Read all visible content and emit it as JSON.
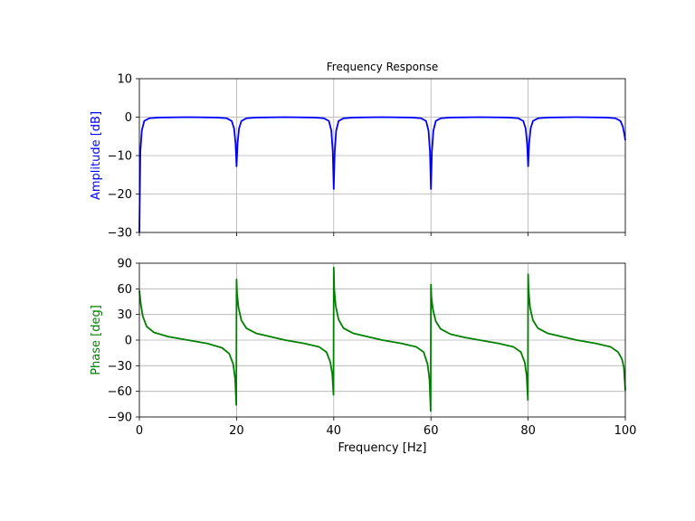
{
  "chart_data": [
    {
      "type": "line",
      "title": "Frequency Response",
      "xlabel": "",
      "ylabel": "Amplitude [dB]",
      "ylabel_color": "#0000ff",
      "xlim": [
        0,
        100
      ],
      "ylim": [
        -30,
        10
      ],
      "xticks": [
        0,
        20,
        40,
        60,
        80,
        100
      ],
      "yticks": [
        -30,
        -20,
        -10,
        0,
        10
      ],
      "xtick_labels": [
        "",
        "",
        "",
        "",
        "",
        ""
      ],
      "ytick_labels": [
        "−30",
        "−20",
        "−10",
        "0",
        "10"
      ],
      "grid": true,
      "series": [
        {
          "color": "#0000ff",
          "x": [
            0,
            0.2,
            0.5,
            1,
            2,
            4,
            10,
            16,
            18,
            19,
            19.5,
            19.8,
            20,
            20.2,
            20.5,
            21,
            22,
            24,
            30,
            36,
            38,
            39,
            39.5,
            39.8,
            40,
            40.2,
            40.5,
            41,
            42,
            44,
            50,
            56,
            58,
            59,
            59.5,
            59.8,
            60,
            60.2,
            60.5,
            61,
            62,
            64,
            70,
            76,
            78,
            79,
            79.5,
            79.8,
            80,
            80.2,
            80.5,
            81,
            82,
            84,
            90,
            96,
            98,
            99,
            99.5,
            99.8,
            100
          ],
          "y": [
            -30,
            -9,
            -3.5,
            -1,
            -0.3,
            -0.1,
            0,
            -0.1,
            -0.3,
            -1,
            -3,
            -7,
            -12.8,
            -7,
            -3,
            -1,
            -0.3,
            -0.1,
            0,
            -0.1,
            -0.3,
            -1,
            -3.5,
            -9,
            -18.7,
            -9,
            -3.5,
            -1,
            -0.3,
            -0.1,
            0,
            -0.1,
            -0.3,
            -1,
            -3.5,
            -9,
            -18.7,
            -9,
            -3.5,
            -1,
            -0.3,
            -0.1,
            0,
            -0.1,
            -0.3,
            -1,
            -3,
            -7,
            -12.8,
            -7,
            -3,
            -1,
            -0.3,
            -0.1,
            0,
            -0.1,
            -0.3,
            -1,
            -2.5,
            -4.5,
            -6
          ]
        }
      ]
    },
    {
      "type": "line",
      "title": "",
      "xlabel": "Frequency [Hz]",
      "ylabel": "Phase [deg]",
      "ylabel_color": "#008000",
      "xlim": [
        0,
        100
      ],
      "ylim": [
        -90,
        90
      ],
      "xticks": [
        0,
        20,
        40,
        60,
        80,
        100
      ],
      "yticks": [
        -90,
        -60,
        -30,
        0,
        30,
        60,
        90
      ],
      "xtick_labels": [
        "0",
        "20",
        "40",
        "60",
        "80",
        "100"
      ],
      "ytick_labels": [
        "−90",
        "−60",
        "−30",
        "0",
        "30",
        "60",
        "90"
      ],
      "grid": true,
      "series": [
        {
          "color": "#008000",
          "x": [
            0,
            0.3,
            0.7,
            1.5,
            3,
            6,
            10,
            14,
            17,
            18.5,
            19.3,
            19.7,
            19.95,
            20,
            20.1,
            20.4,
            21,
            22,
            24,
            27,
            30,
            34,
            37,
            38.5,
            39.3,
            39.7,
            39.95,
            40,
            40.1,
            40.4,
            41,
            42,
            44,
            47,
            50,
            54,
            57,
            58.5,
            59.3,
            59.7,
            59.95,
            60,
            60.1,
            60.4,
            61,
            62,
            64,
            67,
            70,
            74,
            77,
            78.5,
            79.3,
            79.7,
            79.95,
            80,
            80.1,
            80.4,
            81,
            82,
            84,
            87,
            90,
            94,
            97,
            98.5,
            99.3,
            99.7,
            100
          ],
          "y": [
            58,
            42,
            28,
            16,
            9,
            4,
            0,
            -4,
            -9,
            -16,
            -28,
            -45,
            -76,
            71,
            55,
            38,
            23,
            14,
            8,
            4,
            0,
            -4,
            -8,
            -14,
            -26,
            -40,
            -64,
            85,
            60,
            40,
            24,
            14,
            8,
            4,
            0,
            -4,
            -8,
            -14,
            -28,
            -46,
            -83,
            65,
            50,
            36,
            22,
            13,
            7,
            3,
            0,
            -4,
            -8,
            -14,
            -26,
            -42,
            -70,
            77,
            58,
            38,
            23,
            14,
            8,
            4,
            0,
            -4,
            -8,
            -14,
            -22,
            -32,
            -59
          ]
        }
      ]
    }
  ]
}
